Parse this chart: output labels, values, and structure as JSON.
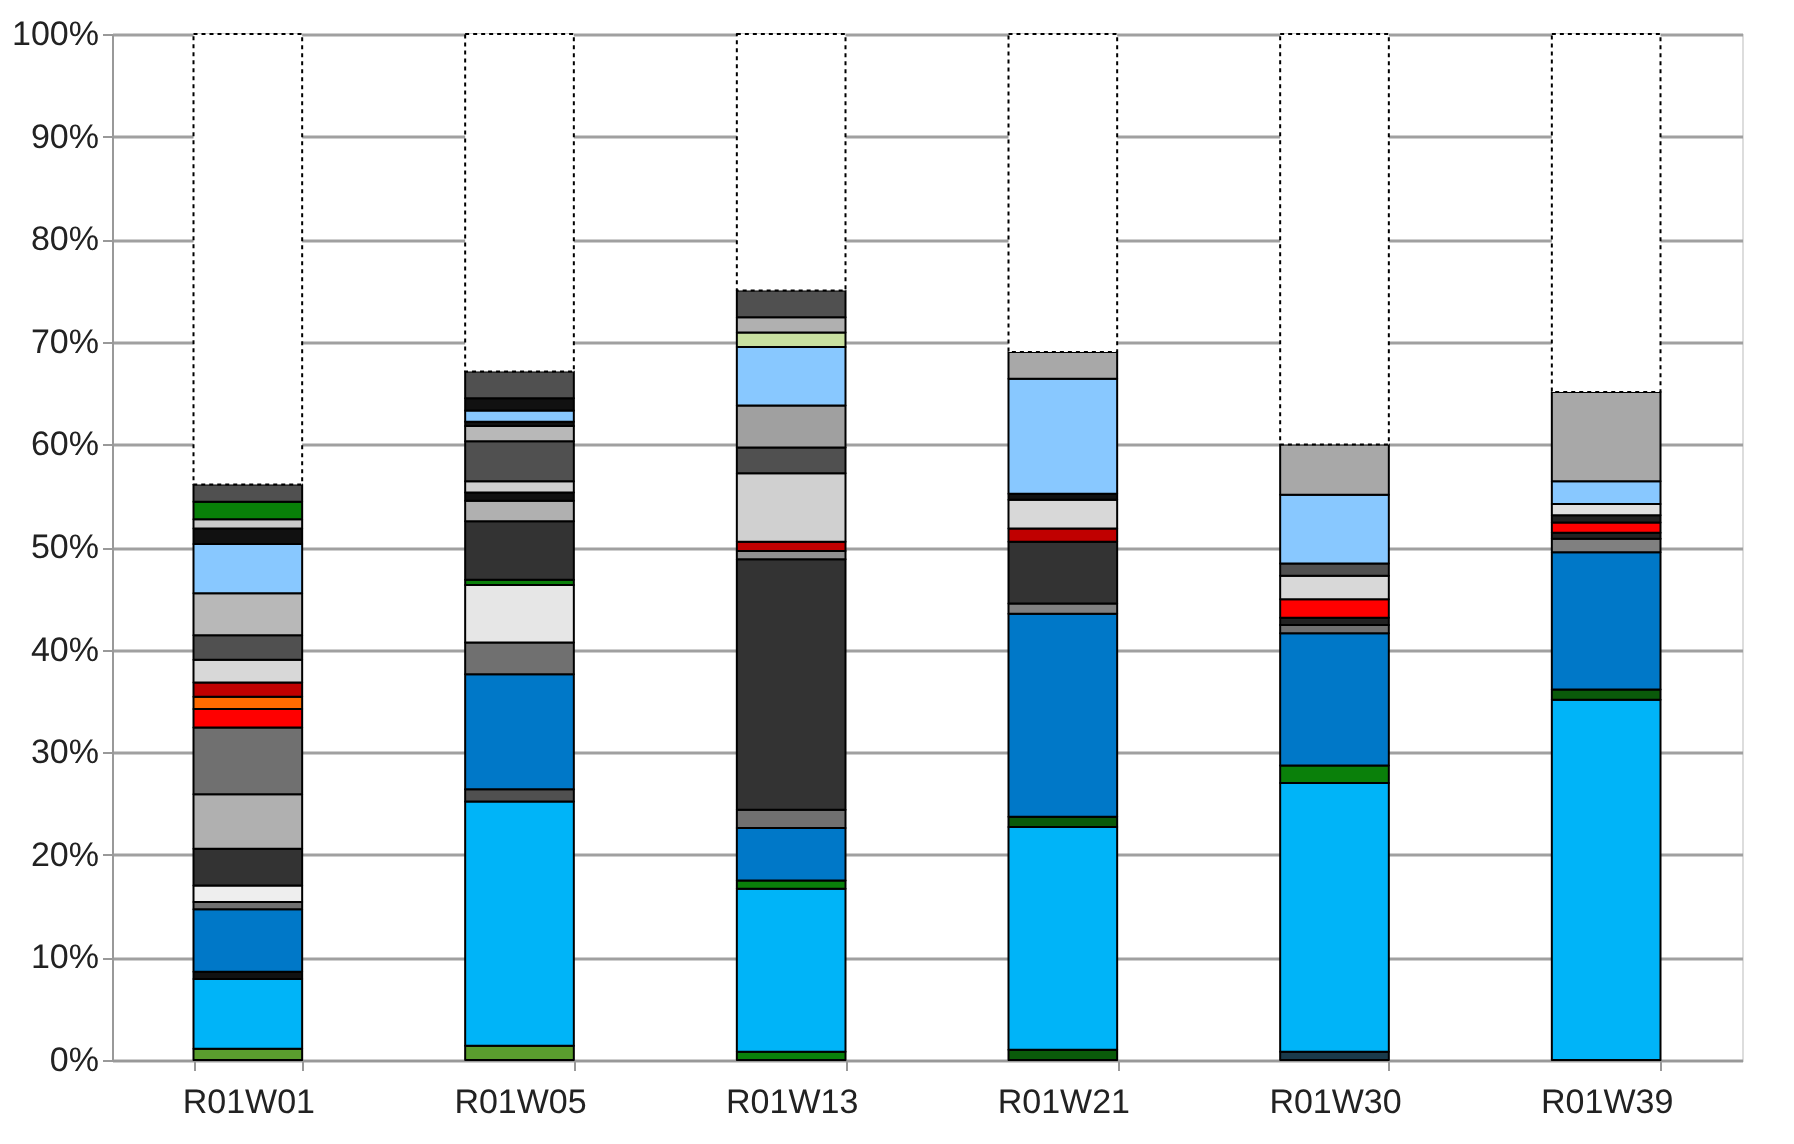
{
  "chart_data": {
    "type": "bar",
    "stacked": true,
    "categories": [
      "R01W01",
      "R01W05",
      "R01W13",
      "R01W21",
      "R01W30",
      "R01W39"
    ],
    "ylim": [
      0,
      100
    ],
    "yticks": [
      {
        "value": 0,
        "label": "0%"
      },
      {
        "value": 10,
        "label": "10%"
      },
      {
        "value": 20,
        "label": "20%"
      },
      {
        "value": 30,
        "label": "30%"
      },
      {
        "value": 40,
        "label": "40%"
      },
      {
        "value": 50,
        "label": "50%"
      },
      {
        "value": 60,
        "label": "60%"
      },
      {
        "value": 70,
        "label": "70%"
      },
      {
        "value": 80,
        "label": "80%"
      },
      {
        "value": 90,
        "label": "90%"
      },
      {
        "value": 100,
        "label": "100%"
      }
    ],
    "grid": "y",
    "series": [
      {
        "values": [
          1.1,
          1.4,
          0.8,
          1.0,
          0.8,
          35.1
        ],
        "colors": [
          "#5a9e2e",
          "#5a9e2e",
          "#0a800a",
          "#0a5a0a",
          "#1a3a4a",
          "#00b4f8"
        ]
      },
      {
        "values": [
          6.8,
          23.8,
          15.9,
          21.7,
          26.2,
          1.0
        ],
        "colors": [
          "#00b4f8",
          "#00b4f8",
          "#00b4f8",
          "#00b4f8",
          "#00b4f8",
          "#0a5a0a"
        ]
      },
      {
        "values": [
          0.7,
          1.2,
          0.8,
          1.0,
          1.7,
          13.4
        ],
        "colors": [
          "#111111",
          "#505050",
          "#0a800a",
          "#0a5a0a",
          "#0a800a",
          "#0078c8"
        ]
      },
      {
        "values": [
          6.1,
          11.2,
          5.1,
          19.8,
          12.9,
          1.3
        ],
        "colors": [
          "#0078c8",
          "#0078c8",
          "#0078c8",
          "#0078c8",
          "#0078c8",
          "#808080"
        ]
      },
      {
        "values": [
          0.7,
          3.1,
          1.8,
          1.0,
          0.8,
          0.6
        ],
        "colors": [
          "#707070",
          "#707070",
          "#707070",
          "#808080",
          "#707070",
          "#222222"
        ]
      },
      {
        "values": [
          1.6,
          5.6,
          24.4,
          6.0,
          0.7,
          1.0
        ],
        "colors": [
          "#eeeeee",
          "#e6e6e6",
          "#333333",
          "#333333",
          "#222222",
          "#ff0000"
        ]
      },
      {
        "values": [
          3.6,
          0.5,
          0.8,
          1.3,
          1.8,
          0.7
        ],
        "colors": [
          "#333333",
          "#0a800a",
          "#909090",
          "#c00000",
          "#ff0000",
          "#222222"
        ]
      },
      {
        "values": [
          5.3,
          5.7,
          0.9,
          2.8,
          2.3,
          1.1
        ],
        "colors": [
          "#b0b0b0",
          "#333333",
          "#c00000",
          "#d8d8d8",
          "#d8d8d8",
          "#e0e0e0"
        ]
      },
      {
        "values": [
          6.5,
          2.0,
          6.7,
          0.6,
          1.2,
          2.2
        ],
        "colors": [
          "#707070",
          "#b0b0b0",
          "#d0d0d0",
          "#111111",
          "#505050",
          "#88c8ff"
        ]
      },
      {
        "values": [
          1.8,
          0.8,
          2.5,
          11.2,
          6.7,
          8.7
        ],
        "colors": [
          "#ff0000",
          "#111111",
          "#505050",
          "#88c8ff",
          "#88c8ff",
          "#a8a8a8"
        ]
      },
      {
        "values": [
          1.2,
          1.1,
          4.1,
          2.6,
          4.9,
          null
        ],
        "colors": [
          "#ff6a00",
          "#d0d0d0",
          "#a0a0a0",
          "#a8a8a8",
          "#a8a8a8",
          null
        ]
      },
      {
        "values": [
          1.4,
          3.9,
          5.7,
          null,
          null,
          null
        ],
        "colors": [
          "#c00000",
          "#505050",
          "#88c8ff",
          null,
          null,
          null
        ]
      },
      {
        "values": [
          2.2,
          1.5,
          1.4,
          null,
          null,
          null
        ],
        "colors": [
          "#d8d8d8",
          "#b8b8b8",
          "#c8e0a0",
          null,
          null,
          null
        ]
      },
      {
        "values": [
          2.4,
          0.4,
          1.5,
          null,
          null,
          null
        ],
        "colors": [
          "#505050",
          "#111111",
          "#b0b0b0",
          null,
          null,
          null
        ]
      },
      {
        "values": [
          4.1,
          1.1,
          2.6,
          null,
          null,
          null
        ],
        "colors": [
          "#b8b8b8",
          "#88c8ff",
          "#505050",
          null,
          null,
          null
        ]
      },
      {
        "values": [
          4.8,
          1.2,
          null,
          null,
          null,
          null
        ],
        "colors": [
          "#88c8ff",
          "#111111",
          null,
          null,
          null,
          null
        ]
      },
      {
        "values": [
          1.5,
          2.6,
          null,
          null,
          null,
          null
        ],
        "colors": [
          "#111111",
          "#505050",
          null,
          null,
          null,
          null
        ]
      },
      {
        "values": [
          0.9,
          null,
          null,
          null,
          null,
          null
        ],
        "colors": [
          "#c8c8c8",
          null,
          null,
          null,
          null,
          null
        ]
      },
      {
        "values": [
          1.7,
          null,
          null,
          null,
          null,
          null
        ],
        "colors": [
          "#088008",
          null,
          null,
          null,
          null,
          null
        ]
      },
      {
        "values": [
          1.7,
          null,
          null,
          null,
          null,
          null
        ],
        "colors": [
          "#505050",
          null,
          null,
          null,
          null,
          null
        ]
      },
      {
        "values": [
          43.9,
          32.9,
          25.0,
          31.0,
          40.0,
          34.9
        ],
        "color": "#ffffff",
        "line_style": "dotted"
      }
    ]
  }
}
